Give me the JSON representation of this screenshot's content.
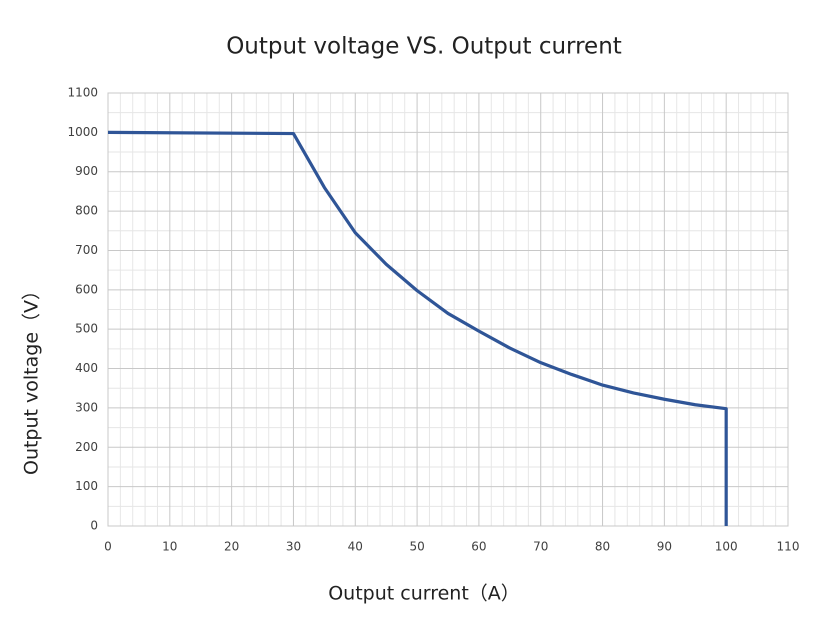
{
  "chart_data": {
    "type": "line",
    "title": "Output voltage VS. Output current",
    "x_label": "Output current（A）",
    "y_label": "Output voltage（V）",
    "x": [
      0,
      30,
      35,
      40,
      45,
      50,
      55,
      60,
      65,
      70,
      75,
      80,
      85,
      90,
      95,
      100,
      100
    ],
    "series": [
      {
        "name": "Output voltage",
        "color": "#2f5597",
        "values": [
          1000,
          997,
          860,
          745,
          665,
          598,
          540,
          495,
          452,
          415,
          385,
          358,
          338,
          322,
          308,
          298,
          0
        ]
      }
    ],
    "xlim": [
      0,
      110
    ],
    "xticks": [
      0,
      10,
      20,
      30,
      40,
      50,
      60,
      70,
      80,
      90,
      100,
      110
    ],
    "ylim": [
      0,
      1100
    ],
    "yticks": [
      0,
      100,
      200,
      300,
      400,
      500,
      600,
      700,
      800,
      900,
      1000,
      1100
    ],
    "grid": true,
    "legend": false
  }
}
